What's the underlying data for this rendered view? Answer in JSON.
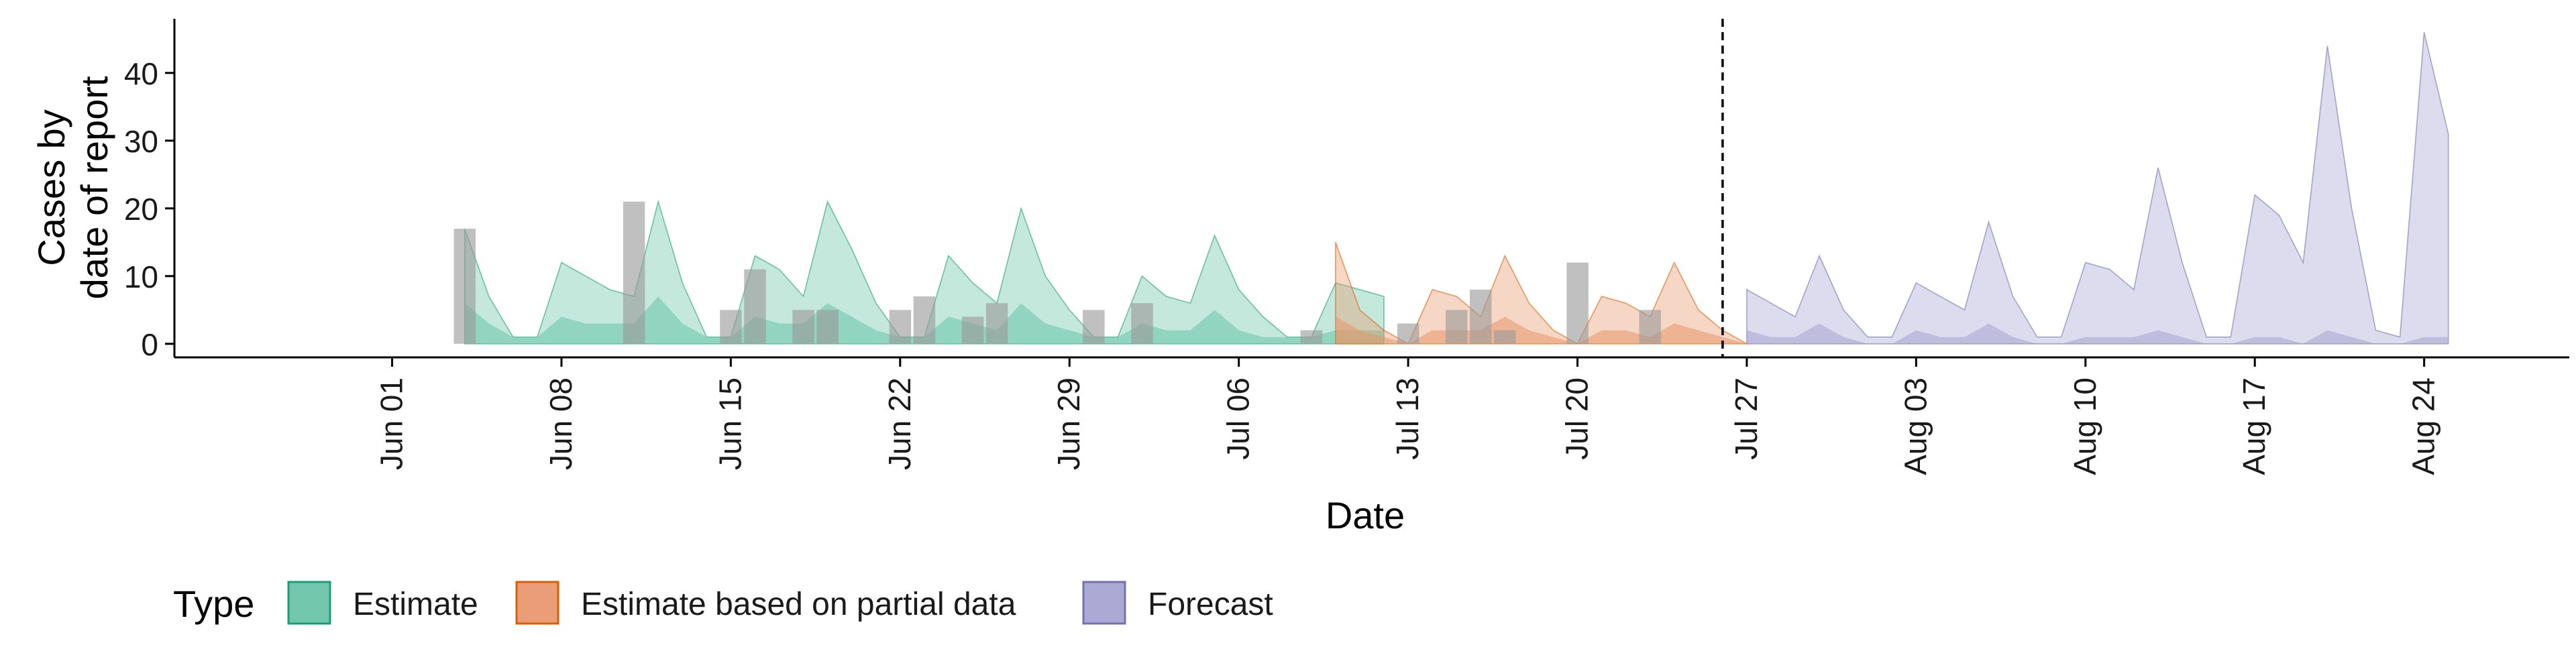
{
  "chart_data": {
    "type": "area",
    "title": "",
    "xlabel": "Date",
    "ylabel_lines": [
      "Cases by",
      "date of report"
    ],
    "ylim": [
      -2,
      48
    ],
    "y_ticks": [
      0,
      10,
      20,
      30,
      40
    ],
    "x_range": [
      "2020-05-23",
      "2020-08-30"
    ],
    "x_ticks": [
      {
        "date": "2020-06-01",
        "label": "Jun 01"
      },
      {
        "date": "2020-06-08",
        "label": "Jun 08"
      },
      {
        "date": "2020-06-15",
        "label": "Jun 15"
      },
      {
        "date": "2020-06-22",
        "label": "Jun 22"
      },
      {
        "date": "2020-06-29",
        "label": "Jun 29"
      },
      {
        "date": "2020-07-06",
        "label": "Jul 06"
      },
      {
        "date": "2020-07-13",
        "label": "Jul 13"
      },
      {
        "date": "2020-07-20",
        "label": "Jul 20"
      },
      {
        "date": "2020-07-27",
        "label": "Jul 27"
      },
      {
        "date": "2020-08-03",
        "label": "Aug 03"
      },
      {
        "date": "2020-08-10",
        "label": "Aug 10"
      },
      {
        "date": "2020-08-17",
        "label": "Aug 17"
      },
      {
        "date": "2020-08-24",
        "label": "Aug 24"
      }
    ],
    "forecast_start": "2020-07-26",
    "grid": false,
    "legend": {
      "title": "Type",
      "position": "bottom-left",
      "items": [
        {
          "label": "Estimate",
          "fill": "#66c2a5",
          "stroke": "#1b9e77"
        },
        {
          "label": "Estimate based on partial data",
          "fill": "#e8956a",
          "stroke": "#d95f02"
        },
        {
          "label": "Forecast",
          "fill": "#a5a3d1",
          "stroke": "#7570b3"
        }
      ]
    },
    "observed_bar_color": "#9a9a9a",
    "observed_cases": [
      {
        "date": "2020-06-04",
        "value": 17
      },
      {
        "date": "2020-06-11",
        "value": 21
      },
      {
        "date": "2020-06-15",
        "value": 5
      },
      {
        "date": "2020-06-16",
        "value": 11
      },
      {
        "date": "2020-06-18",
        "value": 5
      },
      {
        "date": "2020-06-19",
        "value": 5
      },
      {
        "date": "2020-06-22",
        "value": 5
      },
      {
        "date": "2020-06-23",
        "value": 7
      },
      {
        "date": "2020-06-25",
        "value": 4
      },
      {
        "date": "2020-06-26",
        "value": 6
      },
      {
        "date": "2020-06-30",
        "value": 5
      },
      {
        "date": "2020-07-02",
        "value": 6
      },
      {
        "date": "2020-07-09",
        "value": 2
      },
      {
        "date": "2020-07-13",
        "value": 3
      },
      {
        "date": "2020-07-15",
        "value": 5
      },
      {
        "date": "2020-07-16",
        "value": 8
      },
      {
        "date": "2020-07-17",
        "value": 2
      },
      {
        "date": "2020-07-20",
        "value": 12
      },
      {
        "date": "2020-07-23",
        "value": 5
      }
    ],
    "bands": [
      {
        "type": "Estimate",
        "start": "2020-06-04",
        "outer_upper": [
          17,
          7,
          1,
          1,
          12,
          10,
          8,
          7,
          21,
          9,
          1,
          1,
          13,
          11,
          7,
          21,
          14,
          6,
          1,
          1,
          13,
          9,
          6,
          20,
          10,
          5,
          1,
          1,
          10,
          7,
          6,
          16,
          8,
          4,
          1,
          1,
          9,
          8,
          7
        ],
        "inner_upper": [
          6,
          3,
          1,
          1,
          4,
          3,
          3,
          3,
          7,
          3,
          1,
          1,
          4,
          3,
          3,
          6,
          4,
          2,
          1,
          1,
          4,
          3,
          2,
          6,
          3,
          2,
          1,
          1,
          3,
          2,
          2,
          5,
          2,
          1,
          1,
          1,
          2,
          2,
          2
        ]
      },
      {
        "type": "Estimate based on partial data",
        "start": "2020-07-10",
        "outer_upper": [
          15,
          5,
          2,
          0,
          8,
          7,
          4,
          13,
          6,
          2,
          0,
          7,
          6,
          4,
          12,
          5,
          2,
          0
        ],
        "inner_upper": [
          4,
          2,
          1,
          0,
          2,
          2,
          2,
          4,
          2,
          1,
          0,
          2,
          2,
          1,
          3,
          2,
          1,
          0
        ]
      },
      {
        "type": "Forecast",
        "start": "2020-07-27",
        "outer_upper": [
          8,
          6,
          4,
          13,
          5,
          1,
          1,
          9,
          7,
          5,
          18,
          7,
          1,
          1,
          12,
          11,
          8,
          26,
          12,
          1,
          1,
          22,
          19,
          12,
          44,
          20,
          2,
          1,
          46,
          31
        ],
        "inner_upper": [
          2,
          1,
          1,
          3,
          1,
          0,
          0,
          2,
          1,
          1,
          3,
          1,
          0,
          0,
          1,
          1,
          1,
          2,
          1,
          0,
          0,
          1,
          1,
          0,
          2,
          1,
          0,
          0,
          1,
          1
        ]
      }
    ]
  }
}
